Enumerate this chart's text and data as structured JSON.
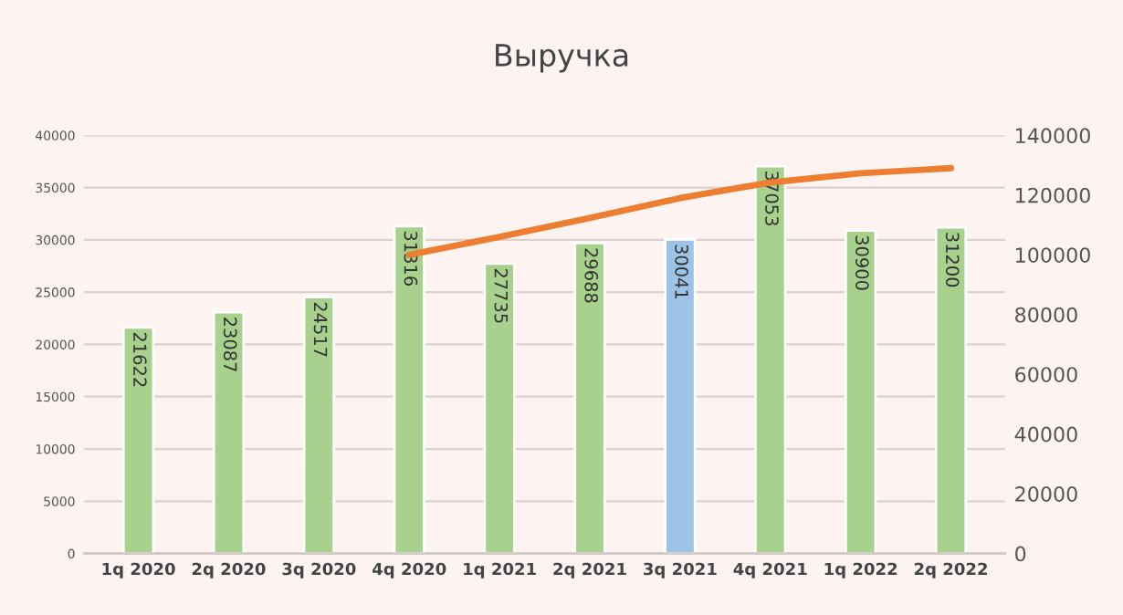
{
  "chart_data": {
    "type": "bar",
    "title": "Выручка",
    "categories": [
      "1q 2020",
      "2q 2020",
      "3q 2020",
      "4q 2020",
      "1q 2021",
      "2q 2021",
      "3q 2021",
      "4q 2021",
      "1q 2022",
      "2q 2022"
    ],
    "series": [
      {
        "colors": [
          "#a9d18e",
          "#a9d18e",
          "#a9d18e",
          "#a9d18e",
          "#a9d18e",
          "#a9d18e",
          "#9dc3e6",
          "#a9d18e",
          "#a9d18e",
          "#a9d18e"
        ],
        "values": [
          21622,
          23087,
          24517,
          31316,
          27735,
          29688,
          30041,
          37053,
          30900,
          31200
        ],
        "data_labels": true
      },
      {
        "type": "line",
        "axis": "y2",
        "color": "#ed7d31",
        "values": [
          null,
          null,
          null,
          100000,
          106000,
          112300,
          119000,
          124200,
          127300,
          129000
        ]
      }
    ],
    "ylim": [
      0,
      40000
    ],
    "yticks": [
      0,
      5000,
      10000,
      15000,
      20000,
      25000,
      30000,
      35000,
      40000
    ],
    "y2lim": [
      0,
      140000
    ],
    "y2ticks": [
      0,
      20000,
      40000,
      60000,
      80000,
      100000,
      120000,
      140000
    ],
    "grid": "y",
    "legend": false
  }
}
